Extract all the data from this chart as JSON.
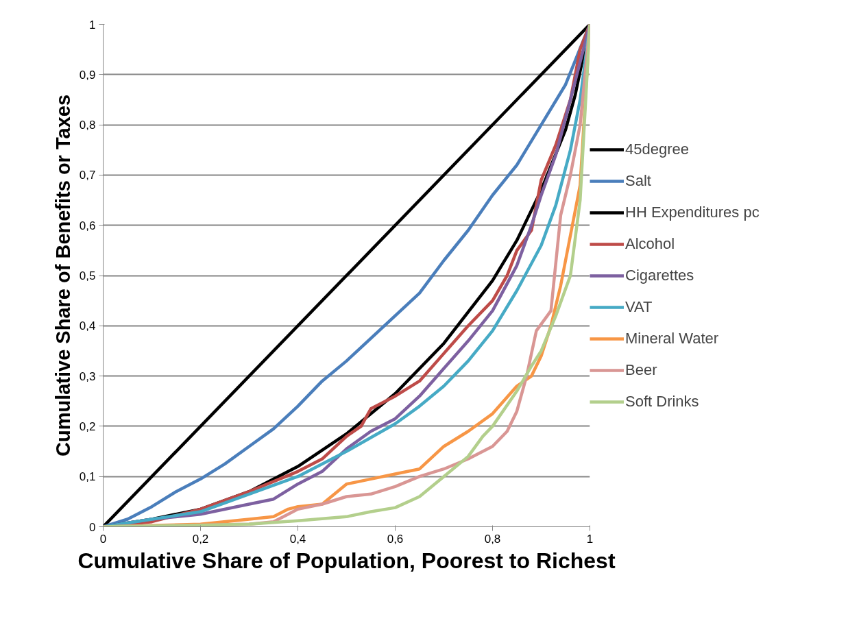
{
  "chart_data": {
    "type": "line",
    "xlabel": "Cumulative Share of Population, Poorest to Richest",
    "ylabel": "Cumulative Share of Benefits or Taxes",
    "xlim": [
      0,
      1
    ],
    "ylim": [
      0,
      1
    ],
    "xticks": [
      0,
      {
        "value": 0.2,
        "label": "0,2"
      },
      {
        "value": 0.4,
        "label": "0,4"
      },
      {
        "value": 0.6,
        "label": "0,6"
      },
      {
        "value": 0.8,
        "label": "0,8"
      },
      1
    ],
    "yticks": [
      0,
      {
        "value": 0.1,
        "label": "0,1"
      },
      {
        "value": 0.2,
        "label": "0,2"
      },
      {
        "value": 0.3,
        "label": "0,3"
      },
      {
        "value": 0.4,
        "label": "0,4"
      },
      {
        "value": 0.5,
        "label": "0,5"
      },
      {
        "value": 0.6,
        "label": "0,6"
      },
      {
        "value": 0.7,
        "label": "0,7"
      },
      {
        "value": 0.8,
        "label": "0,8"
      },
      {
        "value": 0.9,
        "label": "0,9"
      },
      1
    ],
    "grid": "y",
    "legend": "right",
    "marker": "none",
    "line_style": "solid",
    "series": [
      {
        "name": "45degree",
        "color": "#000000",
        "x": [
          0,
          1
        ],
        "values": [
          0,
          1
        ]
      },
      {
        "name": "Salt",
        "color": "#4a7ebb",
        "x": [
          0,
          0.05,
          0.1,
          0.15,
          0.2,
          0.25,
          0.3,
          0.35,
          0.4,
          0.45,
          0.5,
          0.55,
          0.6,
          0.65,
          0.7,
          0.75,
          0.8,
          0.85,
          0.9,
          0.95,
          1
        ],
        "values": [
          0,
          0.015,
          0.04,
          0.07,
          0.095,
          0.125,
          0.16,
          0.195,
          0.24,
          0.29,
          0.33,
          0.375,
          0.42,
          0.465,
          0.53,
          0.59,
          0.66,
          0.72,
          0.8,
          0.88,
          1
        ]
      },
      {
        "name": "HH Expenditures pc",
        "color": "#000000",
        "x": [
          0,
          0.1,
          0.2,
          0.3,
          0.4,
          0.5,
          0.6,
          0.7,
          0.8,
          0.85,
          0.9,
          0.95,
          0.97,
          1
        ],
        "values": [
          0,
          0.015,
          0.035,
          0.07,
          0.12,
          0.185,
          0.265,
          0.365,
          0.49,
          0.57,
          0.67,
          0.79,
          0.86,
          1
        ]
      },
      {
        "name": "Alcohol",
        "color": "#be4b48",
        "x": [
          0,
          0.1,
          0.2,
          0.3,
          0.4,
          0.45,
          0.5,
          0.53,
          0.55,
          0.6,
          0.65,
          0.7,
          0.75,
          0.8,
          0.83,
          0.85,
          0.88,
          0.9,
          0.93,
          0.96,
          0.98,
          1
        ],
        "values": [
          0,
          0.01,
          0.035,
          0.07,
          0.11,
          0.135,
          0.18,
          0.2,
          0.235,
          0.26,
          0.29,
          0.345,
          0.4,
          0.45,
          0.5,
          0.55,
          0.59,
          0.69,
          0.76,
          0.85,
          0.95,
          1
        ]
      },
      {
        "name": "Cigarettes",
        "color": "#7d60a0",
        "x": [
          0,
          0.1,
          0.2,
          0.3,
          0.35,
          0.4,
          0.45,
          0.5,
          0.55,
          0.6,
          0.65,
          0.7,
          0.75,
          0.8,
          0.85,
          0.88,
          0.9,
          0.93,
          0.96,
          1
        ],
        "values": [
          0,
          0.015,
          0.025,
          0.045,
          0.055,
          0.085,
          0.11,
          0.155,
          0.19,
          0.215,
          0.26,
          0.315,
          0.37,
          0.43,
          0.52,
          0.6,
          0.66,
          0.74,
          0.85,
          1
        ]
      },
      {
        "name": "VAT",
        "color": "#46aac5",
        "x": [
          0,
          0.1,
          0.2,
          0.3,
          0.4,
          0.5,
          0.6,
          0.65,
          0.7,
          0.75,
          0.8,
          0.85,
          0.9,
          0.93,
          0.96,
          0.98,
          1
        ],
        "values": [
          0,
          0.015,
          0.03,
          0.065,
          0.1,
          0.15,
          0.205,
          0.24,
          0.28,
          0.33,
          0.39,
          0.47,
          0.56,
          0.64,
          0.75,
          0.85,
          1
        ]
      },
      {
        "name": "Mineral Water",
        "color": "#f79646",
        "x": [
          0,
          0.2,
          0.3,
          0.35,
          0.38,
          0.4,
          0.45,
          0.5,
          0.55,
          0.6,
          0.65,
          0.7,
          0.75,
          0.8,
          0.85,
          0.88,
          0.9,
          0.92,
          0.94,
          0.96,
          0.98,
          1
        ],
        "values": [
          0,
          0.005,
          0.015,
          0.02,
          0.035,
          0.04,
          0.045,
          0.085,
          0.095,
          0.105,
          0.115,
          0.16,
          0.19,
          0.225,
          0.28,
          0.3,
          0.34,
          0.4,
          0.48,
          0.58,
          0.68,
          1
        ]
      },
      {
        "name": "Beer",
        "color": "#d99694",
        "x": [
          0,
          0.3,
          0.35,
          0.38,
          0.4,
          0.45,
          0.5,
          0.55,
          0.6,
          0.65,
          0.7,
          0.75,
          0.8,
          0.83,
          0.85,
          0.87,
          0.89,
          0.92,
          0.94,
          0.96,
          0.98,
          1
        ],
        "values": [
          0,
          0.005,
          0.01,
          0.025,
          0.035,
          0.045,
          0.06,
          0.065,
          0.08,
          0.1,
          0.115,
          0.135,
          0.16,
          0.19,
          0.23,
          0.3,
          0.39,
          0.43,
          0.62,
          0.7,
          0.8,
          1
        ]
      },
      {
        "name": "Soft Drinks",
        "color": "#b3cf8c",
        "x": [
          0,
          0.2,
          0.3,
          0.4,
          0.5,
          0.55,
          0.6,
          0.65,
          0.7,
          0.75,
          0.78,
          0.8,
          0.85,
          0.88,
          0.9,
          0.93,
          0.96,
          0.98,
          1
        ],
        "values": [
          0,
          0.003,
          0.005,
          0.012,
          0.02,
          0.03,
          0.038,
          0.06,
          0.1,
          0.14,
          0.18,
          0.2,
          0.27,
          0.32,
          0.35,
          0.42,
          0.5,
          0.65,
          1
        ]
      }
    ]
  }
}
